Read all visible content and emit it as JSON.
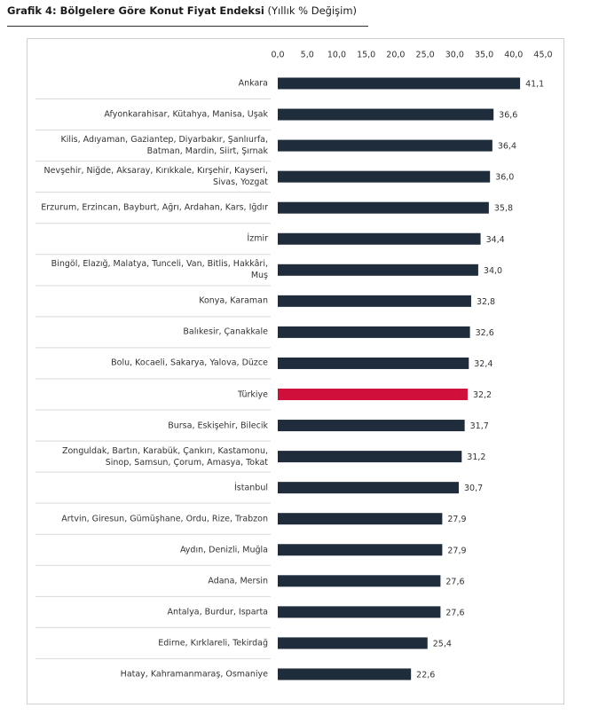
{
  "chart_data": {
    "type": "hbar",
    "title": "Grafik 4: Bölgelere Göre Konut Fiyat Endeksi",
    "subtitle": "(Yıllık % Değişim)",
    "categories": [
      "Ankara",
      "Afyonkarahisar, Kütahya, Manisa, Uşak",
      "Kilis, Adıyaman, Gaziantep, Diyarbakır, Şanlıurfa, Batman, Mardin, Siirt, Şırnak",
      "Nevşehir, Niğde, Aksaray, Kırıkkale, Kırşehir, Kayseri, Sivas, Yozgat",
      "Erzurum, Erzincan, Bayburt, Ağrı, Ardahan, Kars, Iğdır",
      "İzmir",
      "Bingöl, Elazığ, Malatya, Tunceli, Van, Bitlis, Hakkâri, Muş",
      "Konya, Karaman",
      "Balıkesir, Çanakkale",
      "Bolu, Kocaeli, Sakarya, Yalova, Düzce",
      "Türkiye",
      "Bursa, Eskişehir, Bilecik",
      "Zonguldak, Bartın, Karabük, Çankırı, Kastamonu, Sinop, Samsun, Çorum, Amasya, Tokat",
      "İstanbul",
      "Artvin, Giresun, Gümüşhane, Ordu, Rize, Trabzon",
      "Aydın, Denizli, Muğla",
      "Adana, Mersin",
      "Antalya, Burdur, Isparta",
      "Edirne, Kırklareli, Tekirdağ",
      "Hatay, Kahramanmaraş, Osmaniye"
    ],
    "values": [
      41.1,
      36.6,
      36.4,
      36.0,
      35.8,
      34.4,
      34.0,
      32.8,
      32.6,
      32.4,
      32.2,
      31.7,
      31.2,
      30.7,
      27.9,
      27.9,
      27.6,
      27.6,
      25.4,
      22.6
    ],
    "value_labels": [
      "41,1",
      "36,6",
      "36,4",
      "36,0",
      "35,8",
      "34,4",
      "34,0",
      "32,8",
      "32,6",
      "32,4",
      "32,2",
      "31,7",
      "31,2",
      "30,7",
      "27,9",
      "27,9",
      "27,6",
      "27,6",
      "25,4",
      "22,6"
    ],
    "colors": [
      "#1f2c3c",
      "#1f2c3c",
      "#1f2c3c",
      "#1f2c3c",
      "#1f2c3c",
      "#1f2c3c",
      "#1f2c3c",
      "#1f2c3c",
      "#1f2c3c",
      "#1f2c3c",
      "#d0103a",
      "#1f2c3c",
      "#1f2c3c",
      "#1f2c3c",
      "#1f2c3c",
      "#1f2c3c",
      "#1f2c3c",
      "#1f2c3c",
      "#1f2c3c",
      "#1f2c3c"
    ],
    "xlim": [
      0,
      45
    ],
    "xticks": [
      {
        "value": 0,
        "label": "0,0"
      },
      {
        "value": 5,
        "label": "5,0"
      },
      {
        "value": 10,
        "label": "10,0"
      },
      {
        "value": 15,
        "label": "15,0"
      },
      {
        "value": 20,
        "label": "20,0"
      },
      {
        "value": 25,
        "label": "25,0"
      },
      {
        "value": 30,
        "label": "30,0"
      },
      {
        "value": 35,
        "label": "35,0"
      },
      {
        "value": 40,
        "label": "40,0"
      },
      {
        "value": 45,
        "label": "45,0"
      }
    ],
    "grid": false
  }
}
